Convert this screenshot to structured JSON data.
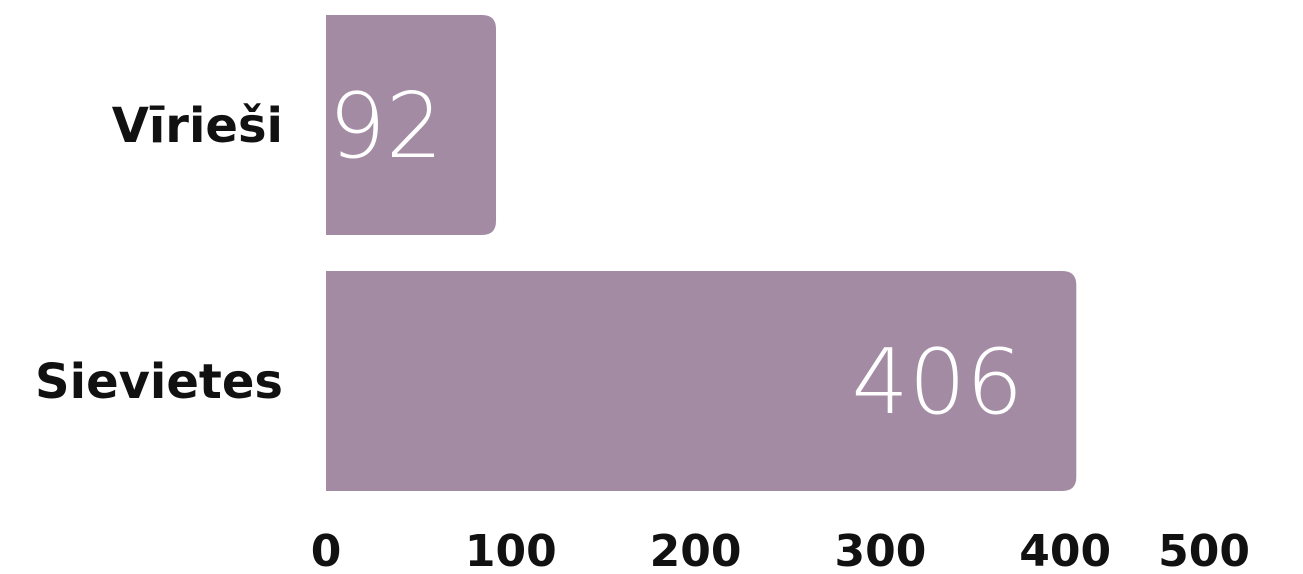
{
  "chart_data": {
    "type": "bar",
    "orientation": "horizontal",
    "categories": [
      "Vīrieši",
      "Sievietes"
    ],
    "values": [
      92,
      406
    ],
    "xlim": [
      0,
      500
    ],
    "xticks": [
      "0",
      "100",
      "200",
      "300",
      "400",
      "500"
    ],
    "grid": false,
    "legend": "none",
    "bar_color": "#a38ba3",
    "value_label_color": "#ffffff"
  }
}
